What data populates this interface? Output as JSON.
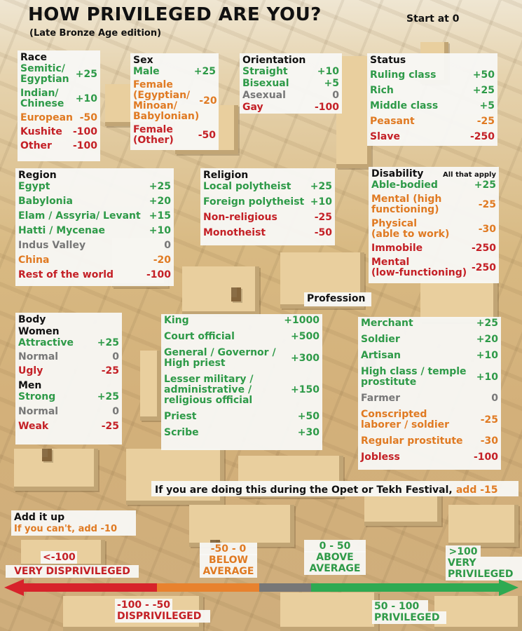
{
  "title": "HOW PRIVILEGED ARE YOU?",
  "subtitle": "(Late Bronze Age edition)",
  "start_text": "Start at 0",
  "colors": {
    "positive": "#2e9a48",
    "neutral": "#777777",
    "warning": "#e07a22",
    "negative": "#c42026"
  },
  "race": {
    "title": "Race",
    "items": [
      {
        "label": "Semitic/\nEgyptian",
        "value": "+25",
        "tone": "g"
      },
      {
        "label": "Indian/\nChinese",
        "value": "+10",
        "tone": "g"
      },
      {
        "label": "European",
        "value": "-50",
        "tone": "o"
      },
      {
        "label": "Kushite",
        "value": "-100",
        "tone": "r"
      },
      {
        "label": "Other",
        "value": "-100",
        "tone": "r"
      }
    ]
  },
  "sex": {
    "title": "Sex",
    "items": [
      {
        "label": "Male",
        "value": "+25",
        "tone": "g"
      },
      {
        "label": "Female\n(Egyptian/\nMinoan/\nBabylonian)",
        "value": "-20",
        "tone": "o"
      },
      {
        "label": "Female\n(Other)",
        "value": "-50",
        "tone": "r"
      }
    ]
  },
  "orientation": {
    "title": "Orientation",
    "items": [
      {
        "label": "Straight",
        "value": "+10",
        "tone": "g"
      },
      {
        "label": "Bisexual",
        "value": "+5",
        "tone": "g"
      },
      {
        "label": "Asexual",
        "value": "0",
        "tone": "gr"
      },
      {
        "label": "Gay",
        "value": "-100",
        "tone": "r"
      }
    ]
  },
  "status": {
    "title": "Status",
    "items": [
      {
        "label": "Ruling class",
        "value": "+50",
        "tone": "g"
      },
      {
        "label": "Rich",
        "value": "+25",
        "tone": "g"
      },
      {
        "label": "Middle class",
        "value": "+5",
        "tone": "g"
      },
      {
        "label": "Peasant",
        "value": "-25",
        "tone": "o"
      },
      {
        "label": "Slave",
        "value": "-250",
        "tone": "r"
      }
    ]
  },
  "region": {
    "title": "Region",
    "items": [
      {
        "label": "Egypt",
        "value": "+25",
        "tone": "g"
      },
      {
        "label": "Babylonia",
        "value": "+20",
        "tone": "g"
      },
      {
        "label": "Elam / Assyria/ Levant",
        "value": "+15",
        "tone": "g"
      },
      {
        "label": "Hatti / Mycenae",
        "value": "+10",
        "tone": "g"
      },
      {
        "label": "Indus Valley",
        "value": "0",
        "tone": "gr"
      },
      {
        "label": "China",
        "value": "-20",
        "tone": "o"
      },
      {
        "label": "Rest of the world",
        "value": "-100",
        "tone": "r"
      }
    ]
  },
  "religion": {
    "title": "Religion",
    "items": [
      {
        "label": "Local polytheist",
        "value": "+25",
        "tone": "g"
      },
      {
        "label": "Foreign polytheist",
        "value": "+10",
        "tone": "g"
      },
      {
        "label": "Non-religious",
        "value": "-25",
        "tone": "r"
      },
      {
        "label": "Monotheist",
        "value": "-50",
        "tone": "r"
      }
    ]
  },
  "disability": {
    "title": "Disability",
    "note": "All that apply",
    "items": [
      {
        "label": "Able-bodied",
        "value": "+25",
        "tone": "g"
      },
      {
        "label": "Mental (high\nfunctioning)",
        "value": "-25",
        "tone": "o"
      },
      {
        "label": "Physical\n(able to work)",
        "value": "-30",
        "tone": "o"
      },
      {
        "label": "Immobile",
        "value": "-250",
        "tone": "r"
      },
      {
        "label": "Mental\n(low-functioning)",
        "value": "-250",
        "tone": "r"
      }
    ]
  },
  "body": {
    "title": "Body",
    "women_title": "Women",
    "women": [
      {
        "label": "Attractive",
        "value": "+25",
        "tone": "g"
      },
      {
        "label": "Normal",
        "value": "0",
        "tone": "gr"
      },
      {
        "label": "Ugly",
        "value": "-25",
        "tone": "r"
      }
    ],
    "men_title": "Men",
    "men": [
      {
        "label": "Strong",
        "value": "+25",
        "tone": "g"
      },
      {
        "label": "Normal",
        "value": "0",
        "tone": "gr"
      },
      {
        "label": "Weak",
        "value": "-25",
        "tone": "r"
      }
    ]
  },
  "profession": {
    "title": "Profession",
    "left": [
      {
        "label": "King",
        "value": "+1000",
        "tone": "g"
      },
      {
        "label": "Court official",
        "value": "+500",
        "tone": "g"
      },
      {
        "label": "General / Governor /\nHigh priest",
        "value": "+300",
        "tone": "g"
      },
      {
        "label": "Lesser military /\nadministrative /\nreligious official",
        "value": "+150",
        "tone": "g"
      },
      {
        "label": "Priest",
        "value": "+50",
        "tone": "g"
      },
      {
        "label": "Scribe",
        "value": "+30",
        "tone": "g"
      }
    ],
    "right": [
      {
        "label": "Merchant",
        "value": "+25",
        "tone": "g"
      },
      {
        "label": "Soldier",
        "value": "+20",
        "tone": "g"
      },
      {
        "label": "Artisan",
        "value": "+10",
        "tone": "g"
      },
      {
        "label": "High class / temple\nprostitute",
        "value": "+10",
        "tone": "g"
      },
      {
        "label": "Farmer",
        "value": "0",
        "tone": "gr"
      },
      {
        "label": "Conscripted\nlaborer / soldier",
        "value": "-25",
        "tone": "o"
      },
      {
        "label": "Regular prostitute",
        "value": "-30",
        "tone": "o"
      },
      {
        "label": "Jobless",
        "value": "-100",
        "tone": "r"
      }
    ]
  },
  "festival": {
    "text": "If you are doing this during the Opet or Tekh Festival,",
    "value": "add -15"
  },
  "add_up": {
    "title": "Add it up",
    "note": "If you can't, add -10"
  },
  "scale": {
    "very_dis": {
      "range": "<-100",
      "label": "VERY DISPRIVILEGED"
    },
    "dis": {
      "range": "-100 - -50",
      "label": "DISPRIVILEGED"
    },
    "below": {
      "range": "-50 - 0",
      "label": "BELOW\nAVERAGE"
    },
    "above": {
      "range": "0 - 50",
      "label": "ABOVE\nAVERAGE"
    },
    "priv": {
      "range": "50 - 100",
      "label": "PRIVILEGED"
    },
    "very_priv": {
      "range": ">100",
      "label": "VERY\nPRIVILEGED"
    }
  }
}
